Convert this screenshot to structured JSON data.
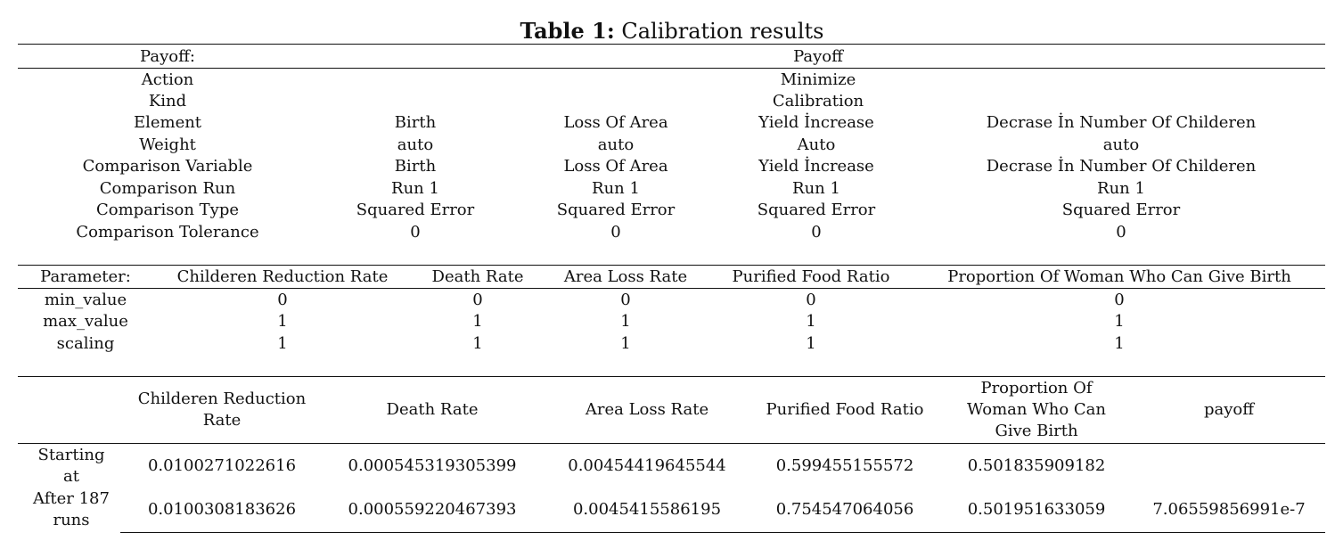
{
  "title": {
    "label": "Table 1:",
    "text": "Calibration results"
  },
  "payoff": {
    "header": [
      "Payoff:",
      "Payoff"
    ],
    "single_rows": [
      {
        "label": "Action",
        "value": "Minimize"
      },
      {
        "label": "Kind",
        "value": "Calibration"
      }
    ],
    "rows": [
      [
        "Element",
        "Birth",
        "Loss Of Area",
        "Yield İncrease",
        "Decrase İn Number Of Childeren"
      ],
      [
        "Weight",
        "auto",
        "auto",
        "Auto",
        "auto"
      ],
      [
        "Comparison Variable",
        "Birth",
        "Loss Of Area",
        "Yield İncrease",
        "Decrase İn Number Of Childeren"
      ],
      [
        "Comparison Run",
        "Run 1",
        "Run 1",
        "Run 1",
        "Run 1"
      ],
      [
        "Comparison Type",
        "Squared Error",
        "Squared Error",
        "Squared Error",
        "Squared Error"
      ],
      [
        "Comparison Tolerance",
        "0",
        "0",
        "0",
        "0"
      ]
    ]
  },
  "parameters": {
    "header": [
      "Parameter:",
      "Childeren Reduction Rate",
      "Death Rate",
      "Area Loss Rate",
      "Purified Food Ratio",
      "Proportion Of Woman Who Can Give Birth"
    ],
    "rows": [
      [
        "min_value",
        "0",
        "0",
        "0",
        "0",
        "0"
      ],
      [
        "max_value",
        "1",
        "1",
        "1",
        "1",
        "1"
      ],
      [
        "scaling",
        "1",
        "1",
        "1",
        "1",
        "1"
      ]
    ]
  },
  "results": {
    "header": [
      "Childeren Reduction Rate",
      "Death Rate",
      "Area Loss Rate",
      "Purified Food Ratio",
      "Proportion Of Woman Who Can Give Birth",
      "payoff"
    ],
    "rows": [
      {
        "label": "Starting at",
        "values": [
          "0.0100271022616",
          "0.000545319305399",
          "0.00454419645544",
          "0.599455155572",
          "0.501835909182"
        ]
      },
      {
        "label": "After 187 runs",
        "values": [
          "0.0100308183626",
          "0.000559220467393",
          "0.0045415586195",
          "0.754547064056",
          "0.501951633059",
          "7.06559856991e-7"
        ]
      }
    ]
  }
}
